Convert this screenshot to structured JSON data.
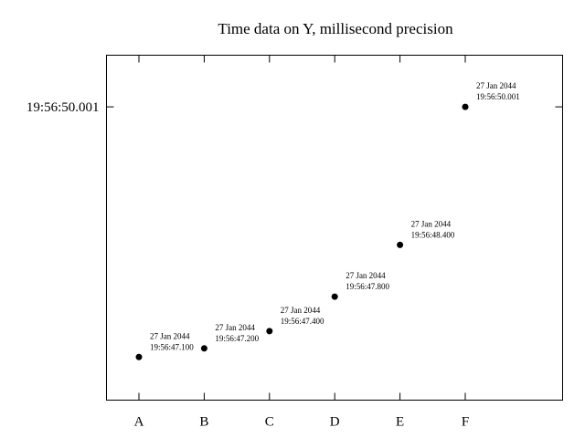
{
  "chart_data": {
    "type": "scatter",
    "title": "Time data on Y, millisecond precision",
    "xlabel": "",
    "ylabel": "",
    "categories": [
      "A",
      "B",
      "C",
      "D",
      "E",
      "F"
    ],
    "y_date": "27 Jan 2044",
    "y_times": [
      "19:56:47.100",
      "19:56:47.200",
      "19:56:47.400",
      "19:56:47.800",
      "19:56:48.400",
      "19:56:50.001"
    ],
    "y_tick_labels": [
      "19:56:50.001"
    ],
    "ylim": [
      "19:56:46.600",
      "19:56:50.600"
    ],
    "grid": false,
    "legend": "none"
  }
}
